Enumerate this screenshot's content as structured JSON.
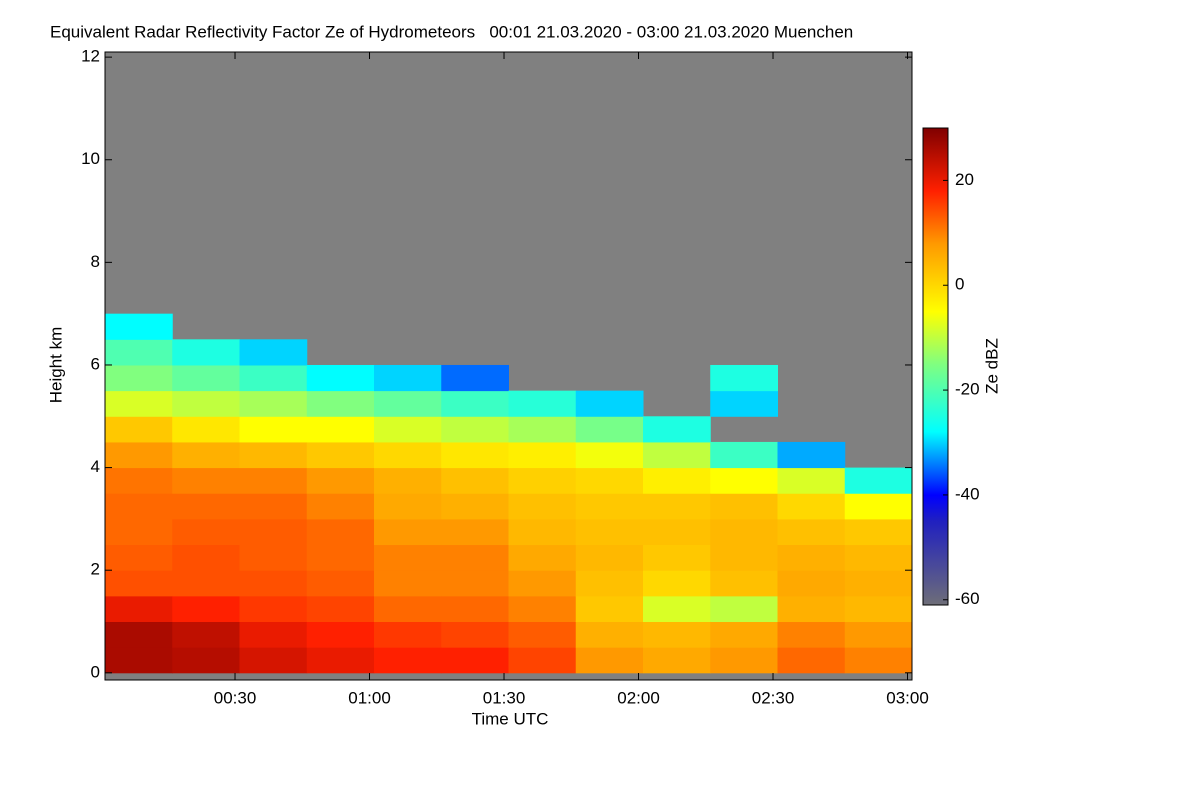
{
  "chart_data": {
    "type": "heatmap",
    "title": "Equivalent Radar Reflectivity Factor Ze of Hydrometeors   00:01 21.03.2020 - 03:00 21.03.2020 Muenchen",
    "x_label": "Time UTC",
    "y_label": "Height km",
    "colorbar_label": "Ze dBZ",
    "xlim": [
      1,
      181
    ],
    "ylim": [
      -0.14,
      12.1
    ],
    "xticks": [
      {
        "value": 30,
        "label": "00:30"
      },
      {
        "value": 60,
        "label": "01:00"
      },
      {
        "value": 90,
        "label": "01:30"
      },
      {
        "value": 120,
        "label": "02:00"
      },
      {
        "value": 150,
        "label": "02:30"
      },
      {
        "value": 180,
        "label": "03:00"
      }
    ],
    "yticks": [
      0,
      2,
      4,
      6,
      8,
      10,
      12
    ],
    "clim": [
      -61,
      30
    ],
    "cticks": [
      -60,
      -40,
      -20,
      0,
      20
    ],
    "x_edges": [
      1,
      16,
      31,
      46,
      61,
      76,
      91,
      106,
      121,
      136,
      151,
      166,
      181
    ],
    "y_edges": [
      0,
      0.5,
      1,
      1.5,
      2,
      2.5,
      3,
      3.5,
      4,
      4.5,
      5,
      5.5,
      6,
      6.5,
      7,
      7.5
    ],
    "z": [
      [
        26,
        26,
        20,
        14,
        13,
        12,
        12,
        11,
        8,
        2,
        -8,
        -15,
        -20,
        -28,
        null
      ],
      [
        25,
        24,
        18,
        14,
        14,
        13,
        12,
        10,
        5,
        -2,
        -10,
        -18,
        -25,
        null,
        null
      ],
      [
        22,
        20,
        16,
        14,
        13,
        13,
        12,
        10,
        4,
        -5,
        -12,
        -22,
        -30,
        null,
        null
      ],
      [
        20,
        18,
        15,
        13,
        12,
        12,
        10,
        8,
        2,
        -5,
        -15,
        -28,
        null,
        null,
        null
      ],
      [
        18,
        16,
        12,
        10,
        10,
        8,
        6,
        5,
        0,
        -8,
        -18,
        -30,
        null,
        null,
        null
      ],
      [
        18,
        15,
        12,
        10,
        10,
        8,
        5,
        3,
        -2,
        -10,
        -22,
        -35,
        null,
        null,
        null
      ],
      [
        15,
        13,
        10,
        8,
        6,
        4,
        3,
        1,
        -3,
        -12,
        -24,
        null,
        null,
        null,
        null
      ],
      [
        8,
        5,
        2,
        3,
        4,
        3,
        2,
        0,
        -6,
        -16,
        -30,
        null,
        null,
        null,
        null
      ],
      [
        6,
        4,
        -8,
        0,
        2,
        3,
        2,
        -3,
        -10,
        -25,
        null,
        null,
        null,
        null,
        null
      ],
      [
        8,
        6,
        -10,
        3,
        4,
        4,
        3,
        -5,
        -22,
        null,
        -30,
        -25,
        null,
        null,
        null
      ],
      [
        12,
        10,
        5,
        6,
        5,
        3,
        0,
        -8,
        -32,
        null,
        null,
        null,
        null,
        null,
        null
      ],
      [
        10,
        8,
        4,
        5,
        4,
        2,
        -5,
        -25,
        null,
        null,
        null,
        null,
        null,
        null,
        null
      ]
    ]
  }
}
